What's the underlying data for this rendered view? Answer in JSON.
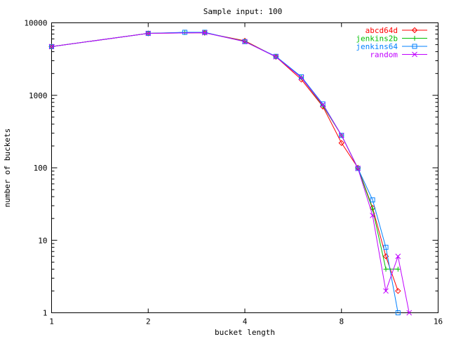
{
  "chart_data": {
    "type": "line",
    "title": "Sample input: 100",
    "xlabel": "bucket length",
    "ylabel": "number of buckets",
    "x_scale": "log2",
    "y_scale": "log10",
    "xlim": [
      1,
      16
    ],
    "ylim": [
      1,
      10000
    ],
    "x_ticks": [
      {
        "value": 1,
        "label": "1"
      },
      {
        "value": 2,
        "label": "2"
      },
      {
        "value": 4,
        "label": "4"
      },
      {
        "value": 8,
        "label": "8"
      },
      {
        "value": 16,
        "label": "16"
      }
    ],
    "y_ticks": [
      {
        "value": 1,
        "label": "1"
      },
      {
        "value": 10,
        "label": "10"
      },
      {
        "value": 100,
        "label": "100"
      },
      {
        "value": 1000,
        "label": "1000"
      },
      {
        "value": 10000,
        "label": "10000"
      }
    ],
    "legend_position": "top-right",
    "grid": false,
    "series": [
      {
        "name": "abcd64d",
        "color": "#ff0000",
        "marker": "diamond",
        "points": [
          [
            1,
            4700
          ],
          [
            2,
            7150
          ],
          [
            3,
            7300
          ],
          [
            4,
            5650
          ],
          [
            5,
            3400
          ],
          [
            6,
            1650
          ],
          [
            7,
            700
          ],
          [
            8,
            220
          ],
          [
            9,
            100
          ],
          [
            10,
            28
          ],
          [
            11,
            6
          ],
          [
            12,
            2
          ]
        ]
      },
      {
        "name": "jenkins2b",
        "color": "#00c000",
        "marker": "plus",
        "points": [
          [
            1,
            4700
          ],
          [
            2,
            7150
          ],
          [
            2.6,
            7350
          ],
          [
            3,
            7300
          ],
          [
            4,
            5550
          ],
          [
            5,
            3400
          ],
          [
            6,
            1750
          ],
          [
            7,
            720
          ],
          [
            8,
            280
          ],
          [
            9,
            98
          ],
          [
            10,
            27
          ],
          [
            11,
            4
          ],
          [
            12,
            4
          ]
        ]
      },
      {
        "name": "jenkins64",
        "color": "#0080ff",
        "marker": "square",
        "points": [
          [
            1,
            4700
          ],
          [
            2,
            7150
          ],
          [
            2.6,
            7400
          ],
          [
            3,
            7400
          ],
          [
            4,
            5500
          ],
          [
            5,
            3450
          ],
          [
            6,
            1800
          ],
          [
            7,
            760
          ],
          [
            8,
            280
          ],
          [
            9,
            98
          ],
          [
            10,
            36
          ],
          [
            11,
            8
          ],
          [
            12,
            1
          ]
        ]
      },
      {
        "name": "random",
        "color": "#c000ff",
        "marker": "cross",
        "points": [
          [
            1,
            4700
          ],
          [
            2,
            7150
          ],
          [
            3,
            7300
          ],
          [
            4,
            5500
          ],
          [
            5,
            3400
          ],
          [
            6,
            1750
          ],
          [
            7,
            740
          ],
          [
            8,
            280
          ],
          [
            9,
            98
          ],
          [
            10,
            22
          ],
          [
            11,
            2
          ],
          [
            12,
            6
          ],
          [
            13,
            1
          ]
        ]
      }
    ]
  }
}
